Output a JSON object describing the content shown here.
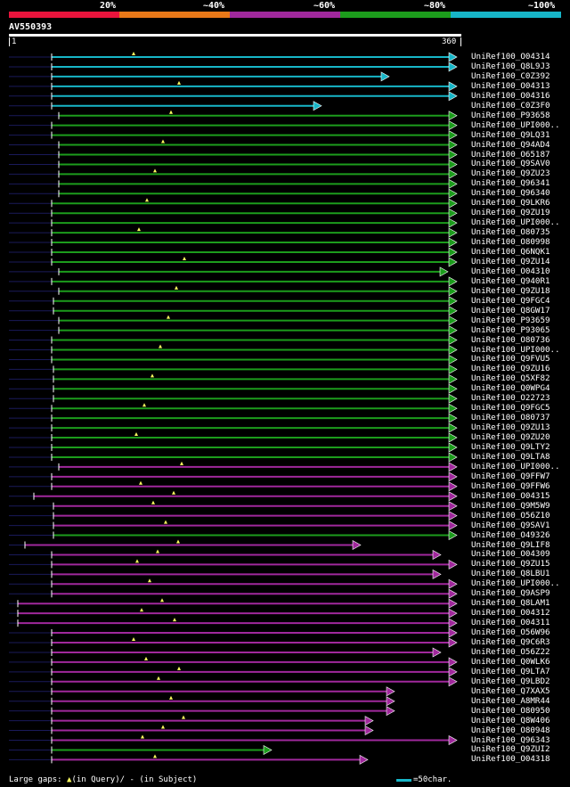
{
  "legend": {
    "labels": [
      "20%",
      "~40%",
      "~60%",
      "~80%",
      "~100%"
    ],
    "colors": [
      "#e8143c",
      "#e87818",
      "#a0289c",
      "#1c9c1c",
      "#17b6c8"
    ]
  },
  "query": {
    "name": "AV550393",
    "start": "1",
    "end": "360"
  },
  "hits": [
    {
      "name": "UniRef100_O04314",
      "color": "cyan"
    },
    {
      "name": "UniRef100_Q8L9J3",
      "color": "cyan"
    },
    {
      "name": "UniRef100_C0Z392",
      "color": "cyan"
    },
    {
      "name": "UniRef100_O04313",
      "color": "cyan"
    },
    {
      "name": "UniRef100_O04316",
      "color": "cyan"
    },
    {
      "name": "UniRef100_C0Z3F0",
      "color": "cyan"
    },
    {
      "name": "UniRef100_P93658",
      "color": "green"
    },
    {
      "name": "UniRef100_UPI000..",
      "color": "green"
    },
    {
      "name": "UniRef100_Q9LQ31",
      "color": "green"
    },
    {
      "name": "UniRef100_Q94AD4",
      "color": "green"
    },
    {
      "name": "UniRef100_O65187",
      "color": "green"
    },
    {
      "name": "UniRef100_Q9SAV0",
      "color": "green"
    },
    {
      "name": "UniRef100_Q9ZU23",
      "color": "green"
    },
    {
      "name": "UniRef100_Q96341",
      "color": "green"
    },
    {
      "name": "UniRef100_Q96340",
      "color": "green"
    },
    {
      "name": "UniRef100_Q9LKR6",
      "color": "green"
    },
    {
      "name": "UniRef100_Q9ZU19",
      "color": "green"
    },
    {
      "name": "UniRef100_UPI000..",
      "color": "green"
    },
    {
      "name": "UniRef100_O80735",
      "color": "green"
    },
    {
      "name": "UniRef100_O80998",
      "color": "green"
    },
    {
      "name": "UniRef100_Q6NQK1",
      "color": "green"
    },
    {
      "name": "UniRef100_Q9ZU14",
      "color": "green"
    },
    {
      "name": "UniRef100_O04310",
      "color": "green"
    },
    {
      "name": "UniRef100_Q940R1",
      "color": "green"
    },
    {
      "name": "UniRef100_Q9ZU18",
      "color": "green"
    },
    {
      "name": "UniRef100_Q9FGC4",
      "color": "green"
    },
    {
      "name": "UniRef100_Q8GW17",
      "color": "green"
    },
    {
      "name": "UniRef100_P93659",
      "color": "green"
    },
    {
      "name": "UniRef100_P93065",
      "color": "green"
    },
    {
      "name": "UniRef100_O80736",
      "color": "green"
    },
    {
      "name": "UniRef100_UPI000..",
      "color": "green"
    },
    {
      "name": "UniRef100_Q9FVU5",
      "color": "green"
    },
    {
      "name": "UniRef100_Q9ZU16",
      "color": "green"
    },
    {
      "name": "UniRef100_Q5XF82",
      "color": "green"
    },
    {
      "name": "UniRef100_Q0WPG4",
      "color": "green"
    },
    {
      "name": "UniRef100_O22723",
      "color": "green"
    },
    {
      "name": "UniRef100_Q9FGC5",
      "color": "green"
    },
    {
      "name": "UniRef100_O80737",
      "color": "green"
    },
    {
      "name": "UniRef100_Q9ZU13",
      "color": "green"
    },
    {
      "name": "UniRef100_Q9ZU20",
      "color": "green"
    },
    {
      "name": "UniRef100_Q9LTY2",
      "color": "green"
    },
    {
      "name": "UniRef100_Q9LTA8",
      "color": "green"
    },
    {
      "name": "UniRef100_UPI000..",
      "color": "purple"
    },
    {
      "name": "UniRef100_Q9FFW7",
      "color": "purple"
    },
    {
      "name": "UniRef100_Q9FFW6",
      "color": "purple"
    },
    {
      "name": "UniRef100_O04315",
      "color": "purple"
    },
    {
      "name": "UniRef100_Q9M5W9",
      "color": "purple"
    },
    {
      "name": "UniRef100_O56Z10",
      "color": "purple"
    },
    {
      "name": "UniRef100_Q9SAV1",
      "color": "purple"
    },
    {
      "name": "UniRef100_O49326",
      "color": "green"
    },
    {
      "name": "UniRef100_Q9LIF8",
      "color": "purple"
    },
    {
      "name": "UniRef100_O04309",
      "color": "purple"
    },
    {
      "name": "UniRef100_Q9ZU15",
      "color": "purple"
    },
    {
      "name": "UniRef100_Q8LBU1",
      "color": "purple"
    },
    {
      "name": "UniRef100_UPI000..",
      "color": "purple"
    },
    {
      "name": "UniRef100_Q9ASP9",
      "color": "purple"
    },
    {
      "name": "UniRef100_Q8LAM1",
      "color": "purple"
    },
    {
      "name": "UniRef100_O04312",
      "color": "purple"
    },
    {
      "name": "UniRef100_O04311",
      "color": "purple"
    },
    {
      "name": "UniRef100_O56W96",
      "color": "purple"
    },
    {
      "name": "UniRef100_Q9C6R3",
      "color": "purple"
    },
    {
      "name": "UniRef100_O56Z22",
      "color": "purple"
    },
    {
      "name": "UniRef100_Q0WLK6",
      "color": "purple"
    },
    {
      "name": "UniRef100_Q9LTA7",
      "color": "purple"
    },
    {
      "name": "UniRef100_Q9LBD2",
      "color": "purple"
    },
    {
      "name": "UniRef100_Q7XAX5",
      "color": "purple"
    },
    {
      "name": "UniRef100_A8MR44",
      "color": "purple"
    },
    {
      "name": "UniRef100_O80950",
      "color": "purple"
    },
    {
      "name": "UniRef100_Q8W406",
      "color": "purple"
    },
    {
      "name": "UniRef100_O80948",
      "color": "purple"
    },
    {
      "name": "UniRef100_Q96343",
      "color": "purple"
    },
    {
      "name": "UniRef100_Q9ZUI2",
      "color": "green"
    },
    {
      "name": "UniRef100_O04318",
      "color": "purple"
    }
  ],
  "footer": {
    "gaps_label": "Large gaps:",
    "query_gap": "(in Query)/",
    "subject_gap": "(in Subject)",
    "scale_label": "=50char."
  }
}
